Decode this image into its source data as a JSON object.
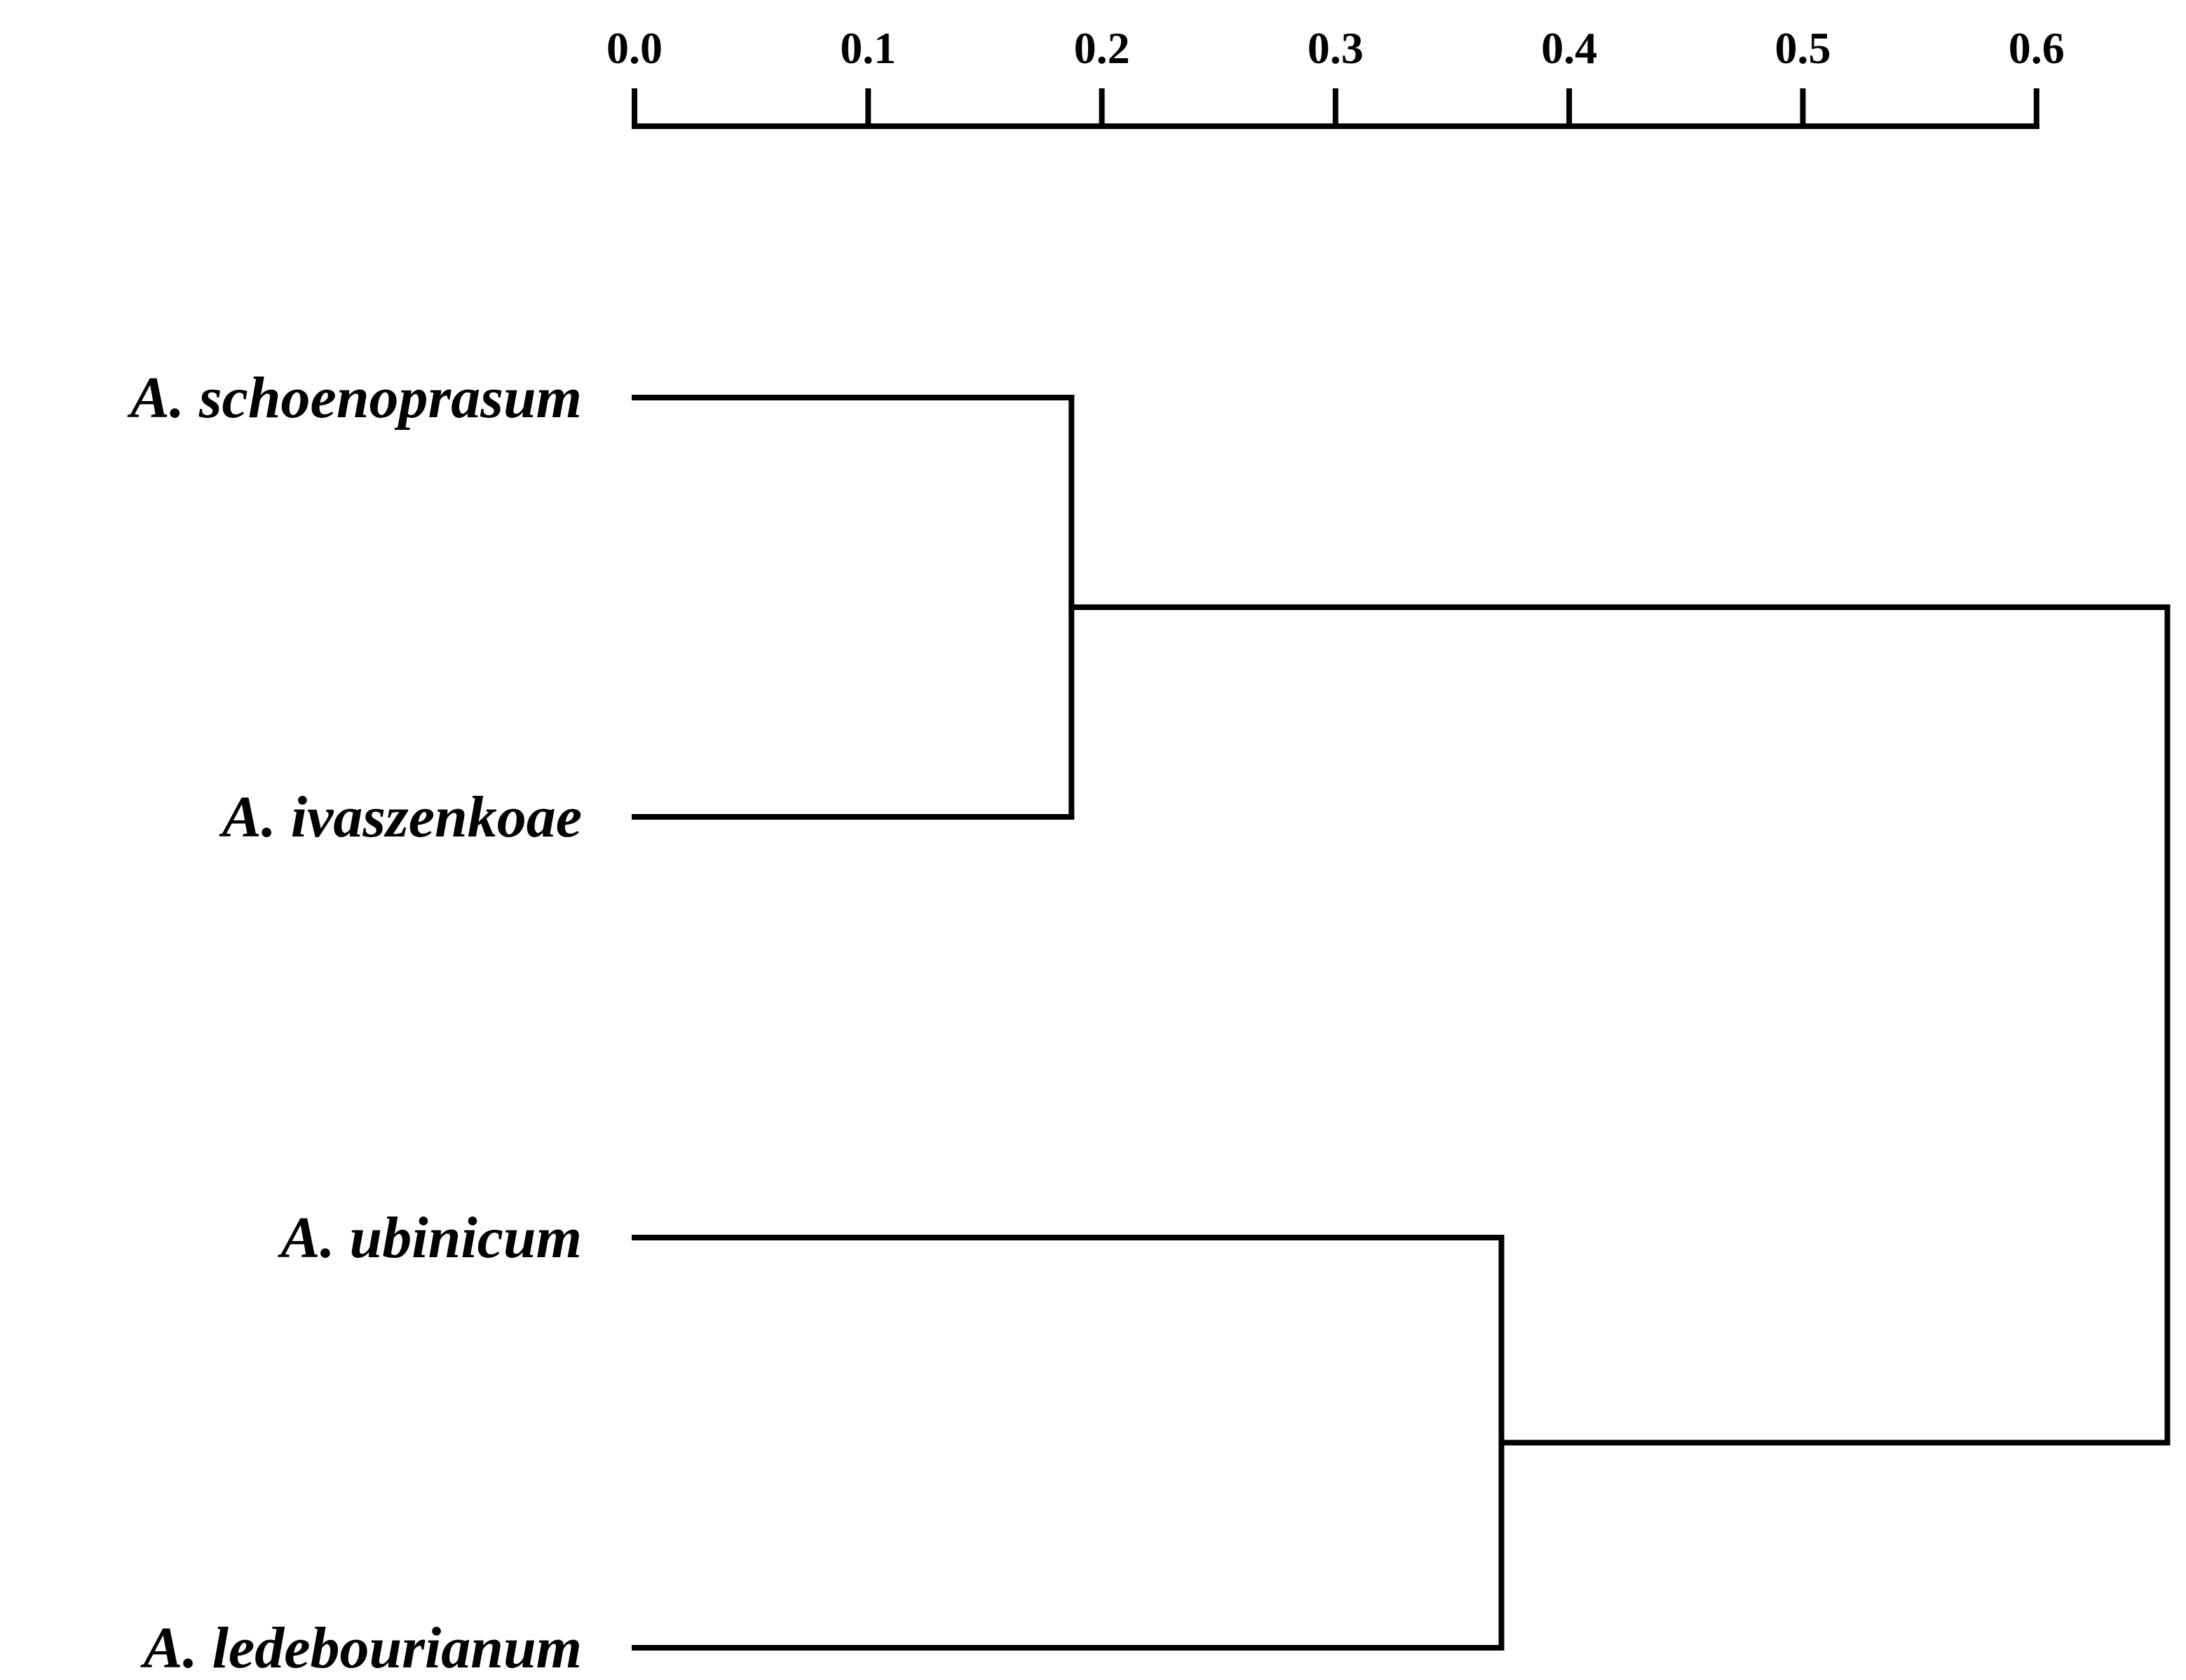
{
  "chart_data": {
    "type": "dendrogram",
    "orientation": "horizontal",
    "axis": {
      "position": "top",
      "range": [
        0.0,
        0.6
      ],
      "ticks": [
        0.0,
        0.1,
        0.2,
        0.3,
        0.4,
        0.5,
        0.6
      ],
      "tick_labels": [
        "0.0",
        "0.1",
        "0.2",
        "0.3",
        "0.4",
        "0.5",
        "0.6"
      ]
    },
    "leaves": [
      "A. schoenoprasum",
      "A. ivaszenkoae",
      "A. ubinicum",
      "A. ledebourianum"
    ],
    "merges": [
      {
        "children": [
          "A. schoenoprasum",
          "A. ivaszenkoae"
        ],
        "height": 0.187
      },
      {
        "children": [
          "A. ubinicum",
          "A. ledebourianum"
        ],
        "height": 0.371
      },
      {
        "children": [
          "cluster-1",
          "cluster-2"
        ],
        "height": 0.656
      }
    ],
    "colors": {
      "line": "#000000",
      "text": "#000000",
      "background": "#ffffff"
    }
  }
}
